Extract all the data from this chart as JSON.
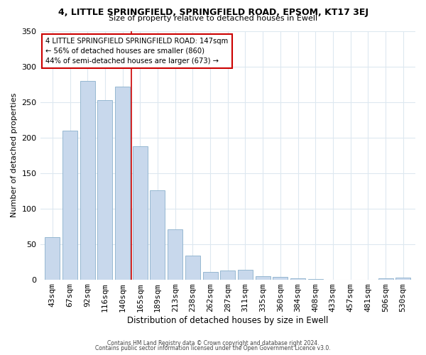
{
  "title": "4, LITTLE SPRINGFIELD, SPRINGFIELD ROAD, EPSOM, KT17 3EJ",
  "subtitle": "Size of property relative to detached houses in Ewell",
  "xlabel": "Distribution of detached houses by size in Ewell",
  "ylabel": "Number of detached properties",
  "bar_labels": [
    "43sqm",
    "67sqm",
    "92sqm",
    "116sqm",
    "140sqm",
    "165sqm",
    "189sqm",
    "213sqm",
    "238sqm",
    "262sqm",
    "287sqm",
    "311sqm",
    "335sqm",
    "360sqm",
    "384sqm",
    "408sqm",
    "433sqm",
    "457sqm",
    "481sqm",
    "506sqm",
    "530sqm"
  ],
  "bar_values": [
    60,
    210,
    280,
    253,
    272,
    188,
    126,
    71,
    34,
    11,
    13,
    14,
    5,
    4,
    2,
    1,
    0,
    0,
    0,
    2,
    3
  ],
  "bar_color": "#c8d8ec",
  "bar_edge_color": "#8ab0cc",
  "property_line_x": 4.5,
  "property_line_color": "#cc0000",
  "ylim": [
    0,
    350
  ],
  "yticks": [
    0,
    50,
    100,
    150,
    200,
    250,
    300,
    350
  ],
  "annotation_line1": "4 LITTLE SPRINGFIELD SPRINGFIELD ROAD: 147sqm",
  "annotation_line2": "← 56% of detached houses are smaller (860)",
  "annotation_line3": "44% of semi-detached houses are larger (673) →",
  "annotation_box_color": "#ffffff",
  "annotation_box_edgecolor": "#cc0000",
  "footer_line1": "Contains HM Land Registry data © Crown copyright and database right 2024.",
  "footer_line2": "Contains public sector information licensed under the Open Government Licence v3.0.",
  "bg_color": "#ffffff",
  "grid_color": "#dde8f0"
}
